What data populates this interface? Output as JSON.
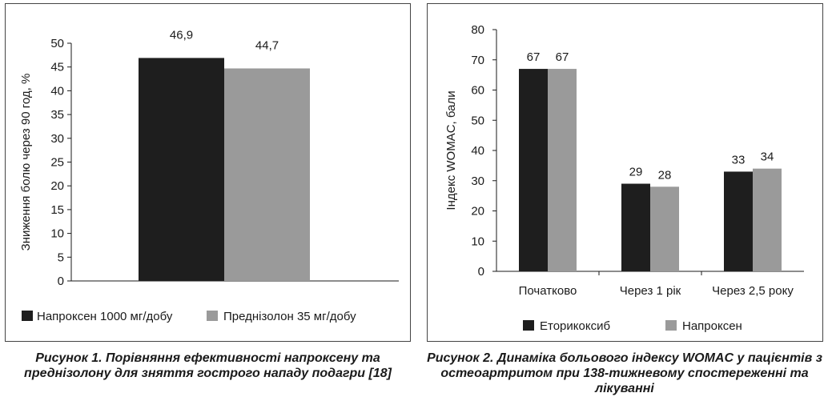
{
  "figure1": {
    "caption": "Рисунок 1. Порівняння ефективності напроксену та преднізолону для зняття гострого нападу подагри [18]",
    "chart_data": {
      "type": "bar",
      "categories": [
        ""
      ],
      "series": [
        {
          "name": "Напроксен 1000 мг/добу",
          "values": [
            46.9
          ],
          "color": "#1e1e1e"
        },
        {
          "name": "Преднізолон 35 мг/добу",
          "values": [
            44.7
          ],
          "color": "#9a9a9a"
        }
      ],
      "data_labels": [
        "46,9",
        "44,7"
      ],
      "ylabel": "Зниження болю через 90 год, %",
      "ylim": [
        0,
        50
      ],
      "yticks": [
        "0",
        "5",
        "10",
        "15",
        "20",
        "25",
        "30",
        "35",
        "40",
        "45",
        "50"
      ],
      "grid": false,
      "legend": "bottom"
    }
  },
  "figure2": {
    "caption": "Рисунок 2. Динаміка больового індексу WOMAC у пацієнтів з остеоартритом при 138-тижневому спостереженні та лікуванні",
    "chart_data": {
      "type": "bar",
      "categories": [
        "Початково",
        "Через 1 рік",
        "Через 2,5 року"
      ],
      "series": [
        {
          "name": "Еторикоксиб",
          "values": [
            67,
            29,
            33
          ],
          "color": "#1e1e1e"
        },
        {
          "name": "Напроксен",
          "values": [
            67,
            28,
            34
          ],
          "color": "#9a9a9a"
        }
      ],
      "ylabel": "Індекс WOMAC, бали",
      "ylim": [
        0,
        80
      ],
      "yticks": [
        "0",
        "10",
        "20",
        "30",
        "40",
        "50",
        "60",
        "70",
        "80"
      ],
      "grid": false,
      "legend": "bottom"
    }
  }
}
